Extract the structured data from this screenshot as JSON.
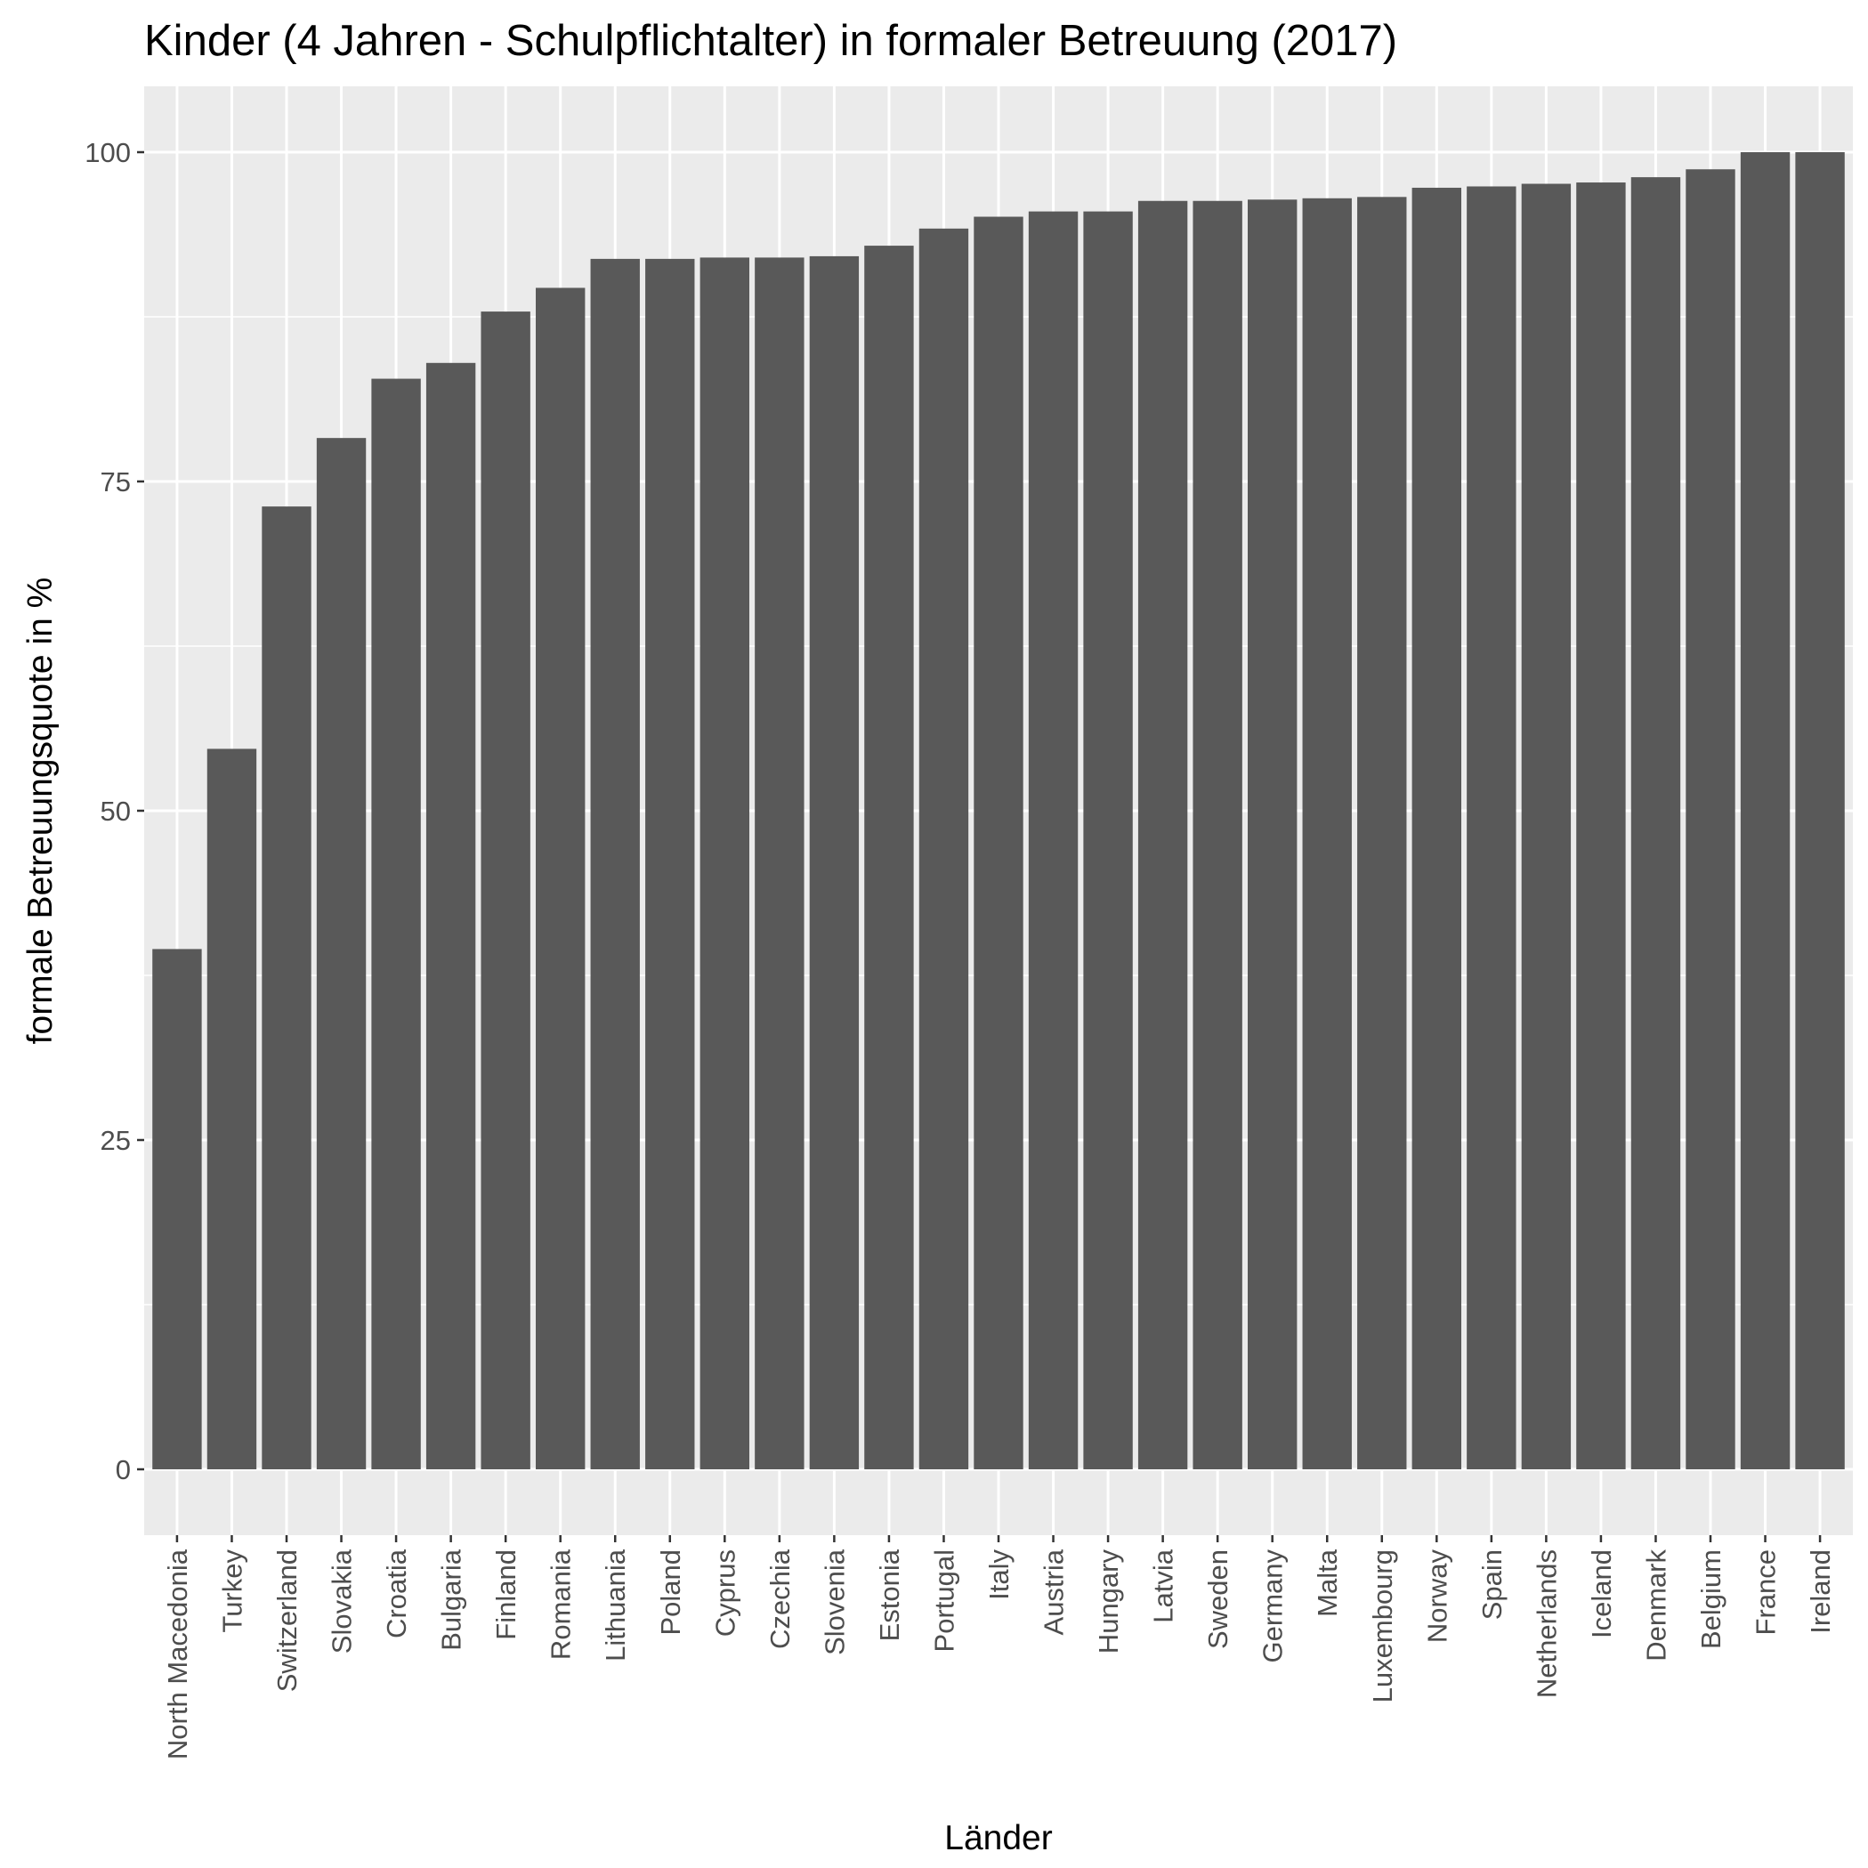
{
  "chart_data": {
    "type": "bar",
    "title": "Kinder (4 Jahren - Schulpflichtalter) in formaler Betreuung (2017)",
    "xlabel": "Länder",
    "ylabel": "formale Betreuungsquote in %",
    "categories": [
      "North Macedonia",
      "Turkey",
      "Switzerland",
      "Slovakia",
      "Croatia",
      "Bulgaria",
      "Finland",
      "Romania",
      "Lithuania",
      "Poland",
      "Cyprus",
      "Czechia",
      "Slovenia",
      "Estonia",
      "Portugal",
      "Italy",
      "Austria",
      "Hungary",
      "Latvia",
      "Sweden",
      "Germany",
      "Malta",
      "Luxembourg",
      "Norway",
      "Spain",
      "Netherlands",
      "Iceland",
      "Denmark",
      "Belgium",
      "France",
      "Ireland"
    ],
    "values": [
      39.5,
      54.7,
      73.1,
      78.3,
      82.8,
      84.0,
      87.9,
      89.7,
      91.9,
      91.9,
      92.0,
      92.0,
      92.1,
      92.9,
      94.2,
      95.1,
      95.5,
      95.5,
      96.3,
      96.3,
      96.4,
      96.5,
      96.6,
      97.3,
      97.4,
      97.6,
      97.7,
      98.1,
      98.7,
      100.0,
      100.0
    ],
    "ylim": [
      -5,
      105
    ],
    "yticks": [
      "0",
      "25",
      "50",
      "75",
      "100"
    ],
    "grid": true,
    "colors": {
      "bar": "#595959",
      "panel": "#ebebeb",
      "grid": "#ffffff",
      "tick_text": "#4d4d4d",
      "tick_mark": "#333333"
    }
  }
}
